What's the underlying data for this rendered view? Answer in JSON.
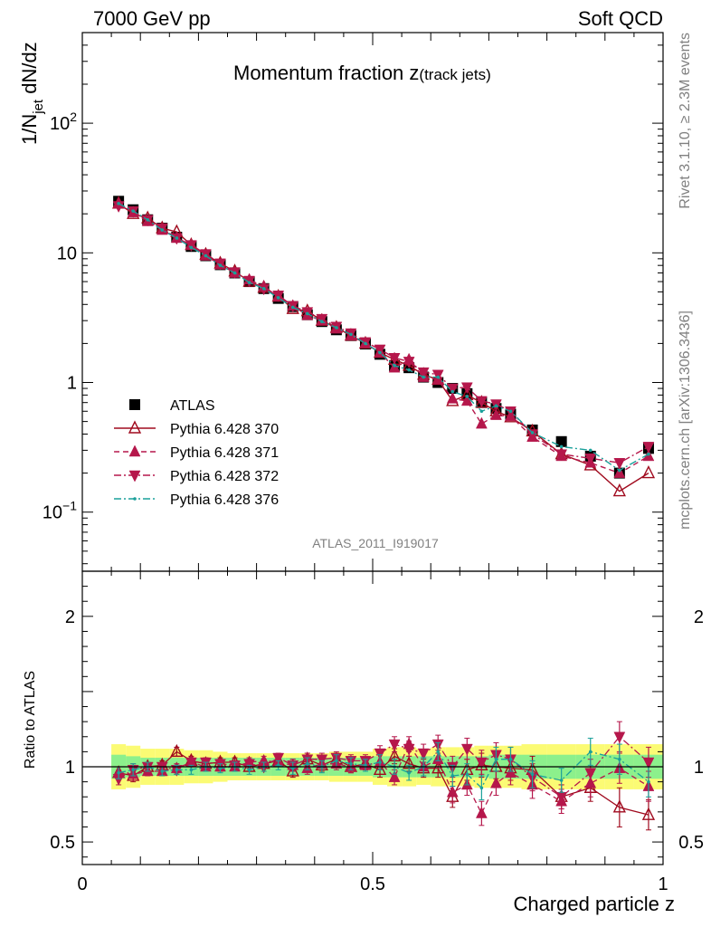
{
  "header": {
    "energy_label": "7000 GeV pp",
    "category_label": "Soft QCD"
  },
  "side_labels": {
    "rivet": "Rivet 3.1.10, ≥ 2.3M events",
    "mcplots": "mcplots.cern.ch [arXiv:1306.3436]"
  },
  "analysis_id": "ATLAS_2011_I919017",
  "chart_data": [
    {
      "type": "line",
      "title": "Momentum fraction z",
      "title_sub": "(track jets)",
      "ylabel": "1/N",
      "ylabel_sub": "jet",
      "ylabel_tail": " dN/dz",
      "yscale": "log",
      "xlim": [
        0,
        1
      ],
      "ylim": [
        0.035,
        500
      ],
      "yticks": [
        {
          "v": 0.1,
          "base": "10",
          "exp": "−1"
        },
        {
          "v": 1,
          "text": "1"
        },
        {
          "v": 10,
          "text": "10"
        },
        {
          "v": 100,
          "base": "10",
          "exp": "2"
        }
      ],
      "legend_position": "lower-left",
      "x": [
        0.0625,
        0.0875,
        0.1125,
        0.1375,
        0.1625,
        0.1875,
        0.2125,
        0.2375,
        0.2625,
        0.2875,
        0.3125,
        0.3375,
        0.3625,
        0.3875,
        0.4125,
        0.4375,
        0.4625,
        0.4875,
        0.5125,
        0.5375,
        0.5625,
        0.5875,
        0.6125,
        0.6375,
        0.6625,
        0.6875,
        0.7125,
        0.7375,
        0.775,
        0.825,
        0.875,
        0.925,
        0.975
      ],
      "series": [
        {
          "name": "ATLAS",
          "marker": "square",
          "color": "#000000",
          "line": "none",
          "values": [
            25,
            21.5,
            18,
            15.5,
            13.2,
            11.2,
            9.5,
            8.1,
            7.0,
            6.0,
            5.3,
            4.45,
            3.85,
            3.33,
            2.95,
            2.55,
            2.3,
            1.98,
            1.65,
            1.35,
            1.3,
            1.1,
            1.0,
            0.9,
            0.82,
            0.7,
            0.63,
            0.57,
            0.43,
            0.35,
            0.27,
            0.2,
            0.31
          ]
        },
        {
          "name": "Pythia 6.428 370",
          "marker": "triangle-up-open",
          "color": "#a00a1e",
          "line": "solid",
          "values": [
            24,
            20,
            18.5,
            15.5,
            14.5,
            11.5,
            9.7,
            8.3,
            7.2,
            6.0,
            5.4,
            4.6,
            3.7,
            3.55,
            3.0,
            2.65,
            2.3,
            2.0,
            1.7,
            1.5,
            1.35,
            1.15,
            1.05,
            0.72,
            0.8,
            0.7,
            0.6,
            0.54,
            0.42,
            0.28,
            0.23,
            0.145,
            0.2
          ]
        },
        {
          "name": "Pythia 6.428 371",
          "marker": "triangle-up",
          "color": "#b5174b",
          "line": "dashed",
          "values": [
            24,
            20.5,
            17.5,
            15.0,
            13.0,
            11.5,
            9.5,
            8.1,
            7.0,
            6.2,
            5.5,
            4.6,
            3.9,
            3.3,
            3.0,
            2.6,
            2.3,
            2.0,
            1.7,
            1.3,
            1.5,
            1.1,
            1.05,
            0.75,
            0.72,
            0.48,
            0.56,
            0.55,
            0.38,
            0.27,
            0.24,
            0.2,
            0.27
          ]
        },
        {
          "name": "Pythia 6.428 372",
          "marker": "triangle-down",
          "color": "#b5174b",
          "line": "dashdot",
          "values": [
            23,
            21,
            18,
            15.5,
            13.0,
            11.5,
            9.8,
            8.3,
            7.1,
            6.1,
            5.3,
            4.7,
            3.9,
            3.5,
            3.1,
            2.7,
            2.4,
            2.05,
            1.8,
            1.55,
            1.45,
            1.2,
            1.15,
            0.9,
            0.92,
            0.72,
            0.68,
            0.6,
            0.4,
            0.28,
            0.26,
            0.24,
            0.32
          ]
        },
        {
          "name": "Pythia 6.428 376",
          "marker": "dot",
          "color": "#1aa09a",
          "line": "dashdot",
          "values": [
            24,
            21,
            18,
            15.0,
            13.0,
            11.0,
            9.5,
            8.0,
            7.0,
            5.9,
            5.3,
            4.5,
            3.8,
            3.4,
            2.95,
            2.65,
            2.35,
            2.0,
            1.7,
            1.35,
            1.25,
            1.1,
            1.1,
            0.85,
            0.78,
            0.6,
            0.66,
            0.6,
            0.41,
            0.32,
            0.3,
            0.21,
            0.28
          ]
        }
      ]
    },
    {
      "type": "line",
      "ylabel": "Ratio to ATLAS",
      "xlabel": "Charged particle z",
      "xlim": [
        0,
        1
      ],
      "ylim": [
        0.35,
        2.3
      ],
      "xticks": [
        {
          "v": 0,
          "text": "0"
        },
        {
          "v": 0.5,
          "text": "0.5"
        },
        {
          "v": 1,
          "text": "1"
        }
      ],
      "yticks": [
        {
          "v": 0.5,
          "text": "0.5"
        },
        {
          "v": 1,
          "text": "1"
        },
        {
          "v": 2,
          "text": "2"
        }
      ],
      "reference_line": 1,
      "band_inner": [
        0.08,
        0.07,
        0.06,
        0.06,
        0.06,
        0.06,
        0.06,
        0.06,
        0.06,
        0.06,
        0.06,
        0.06,
        0.06,
        0.06,
        0.06,
        0.06,
        0.06,
        0.06,
        0.07,
        0.07,
        0.07,
        0.07,
        0.07,
        0.07,
        0.07,
        0.07,
        0.08,
        0.08,
        0.08,
        0.08,
        0.08,
        0.08,
        0.08
      ],
      "band_outer": [
        0.15,
        0.14,
        0.12,
        0.12,
        0.12,
        0.11,
        0.11,
        0.1,
        0.09,
        0.09,
        0.09,
        0.09,
        0.09,
        0.09,
        0.09,
        0.1,
        0.1,
        0.1,
        0.12,
        0.13,
        0.13,
        0.12,
        0.13,
        0.13,
        0.13,
        0.14,
        0.14,
        0.14,
        0.15,
        0.15,
        0.15,
        0.15,
        0.15
      ],
      "ratio_series": [
        {
          "name": "Pythia 6.428 370",
          "values": [
            0.96,
            0.94,
            1.0,
            1.01,
            1.1,
            1.04,
            1.02,
            1.03,
            1.03,
            1.0,
            1.02,
            1.04,
            0.97,
            1.05,
            1.01,
            1.05,
            1.0,
            1.02,
            0.98,
            1.07,
            1.02,
            0.99,
            0.99,
            0.8,
            0.98,
            1.01,
            1.0,
            0.99,
            0.98,
            0.8,
            0.86,
            0.73,
            0.68
          ],
          "errors": [
            0.04,
            0.04,
            0.03,
            0.03,
            0.03,
            0.03,
            0.03,
            0.03,
            0.03,
            0.03,
            0.03,
            0.03,
            0.04,
            0.04,
            0.04,
            0.04,
            0.04,
            0.04,
            0.05,
            0.05,
            0.05,
            0.06,
            0.06,
            0.07,
            0.07,
            0.08,
            0.08,
            0.08,
            0.09,
            0.08,
            0.09,
            0.13,
            0.1
          ]
        },
        {
          "name": "Pythia 6.428 371",
          "values": [
            0.96,
            0.95,
            0.97,
            0.97,
            0.99,
            1.03,
            1.0,
            1.0,
            1.0,
            1.03,
            1.04,
            1.03,
            1.01,
            0.99,
            1.02,
            1.02,
            1.0,
            1.01,
            1.03,
            0.93,
            1.15,
            1.0,
            1.05,
            0.83,
            0.88,
            0.69,
            0.89,
            0.96,
            0.88,
            0.77,
            0.89,
            0.99,
            0.87
          ],
          "errors": [
            0.04,
            0.04,
            0.03,
            0.03,
            0.03,
            0.03,
            0.03,
            0.03,
            0.03,
            0.03,
            0.03,
            0.03,
            0.04,
            0.04,
            0.04,
            0.04,
            0.04,
            0.04,
            0.05,
            0.05,
            0.05,
            0.06,
            0.06,
            0.07,
            0.07,
            0.08,
            0.08,
            0.08,
            0.09,
            0.08,
            0.09,
            0.1,
            0.1
          ]
        },
        {
          "name": "Pythia 6.428 372",
          "values": [
            0.92,
            0.98,
            1.0,
            1.0,
            0.98,
            1.03,
            1.03,
            1.02,
            1.01,
            1.02,
            1.0,
            1.06,
            1.01,
            1.05,
            1.05,
            1.06,
            1.04,
            1.04,
            1.09,
            1.15,
            1.12,
            1.09,
            1.15,
            1.0,
            1.12,
            1.03,
            1.08,
            1.05,
            0.93,
            0.8,
            0.96,
            1.2,
            1.03
          ],
          "errors": [
            0.04,
            0.04,
            0.03,
            0.03,
            0.03,
            0.03,
            0.03,
            0.03,
            0.03,
            0.03,
            0.03,
            0.03,
            0.04,
            0.04,
            0.04,
            0.04,
            0.04,
            0.04,
            0.05,
            0.05,
            0.05,
            0.06,
            0.06,
            0.07,
            0.07,
            0.08,
            0.08,
            0.08,
            0.09,
            0.08,
            0.09,
            0.1,
            0.1
          ]
        },
        {
          "name": "Pythia 6.428 376",
          "values": [
            0.96,
            0.98,
            1.0,
            0.97,
            0.98,
            0.98,
            1.0,
            0.99,
            1.0,
            0.98,
            1.0,
            1.01,
            0.99,
            1.02,
            1.0,
            1.04,
            1.02,
            1.01,
            1.03,
            1.0,
            0.96,
            1.0,
            1.1,
            0.94,
            0.95,
            0.86,
            1.05,
            1.05,
            0.95,
            0.91,
            1.1,
            1.05,
            0.9
          ],
          "errors": [
            0.04,
            0.04,
            0.03,
            0.03,
            0.03,
            0.03,
            0.03,
            0.03,
            0.03,
            0.03,
            0.03,
            0.03,
            0.04,
            0.04,
            0.04,
            0.04,
            0.04,
            0.04,
            0.05,
            0.05,
            0.05,
            0.06,
            0.06,
            0.07,
            0.07,
            0.08,
            0.08,
            0.08,
            0.09,
            0.08,
            0.09,
            0.1,
            0.1
          ]
        }
      ]
    }
  ]
}
